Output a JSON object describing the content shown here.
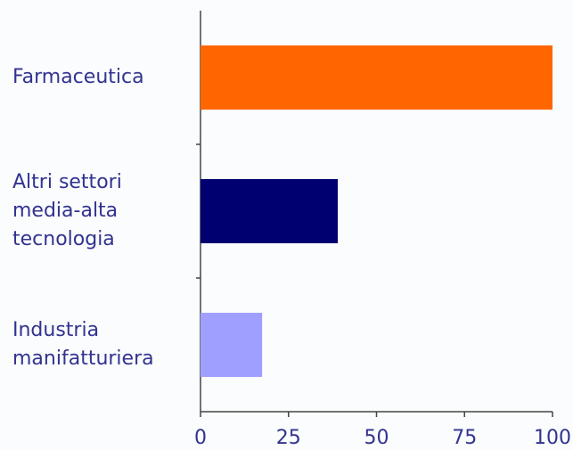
{
  "chart_data": {
    "type": "bar",
    "orientation": "horizontal",
    "categories": [
      "Farmaceutica",
      "Altri settori\nmedia-alta\ntecnologia",
      "Industria\nmanifatturiera"
    ],
    "values": [
      100,
      39,
      17.5
    ],
    "colors": [
      "#ff6600",
      "#000070",
      "#9f9fff"
    ],
    "xlim": [
      0,
      100
    ],
    "xticks": [
      0,
      25,
      50,
      75,
      100
    ],
    "grid": false
  }
}
